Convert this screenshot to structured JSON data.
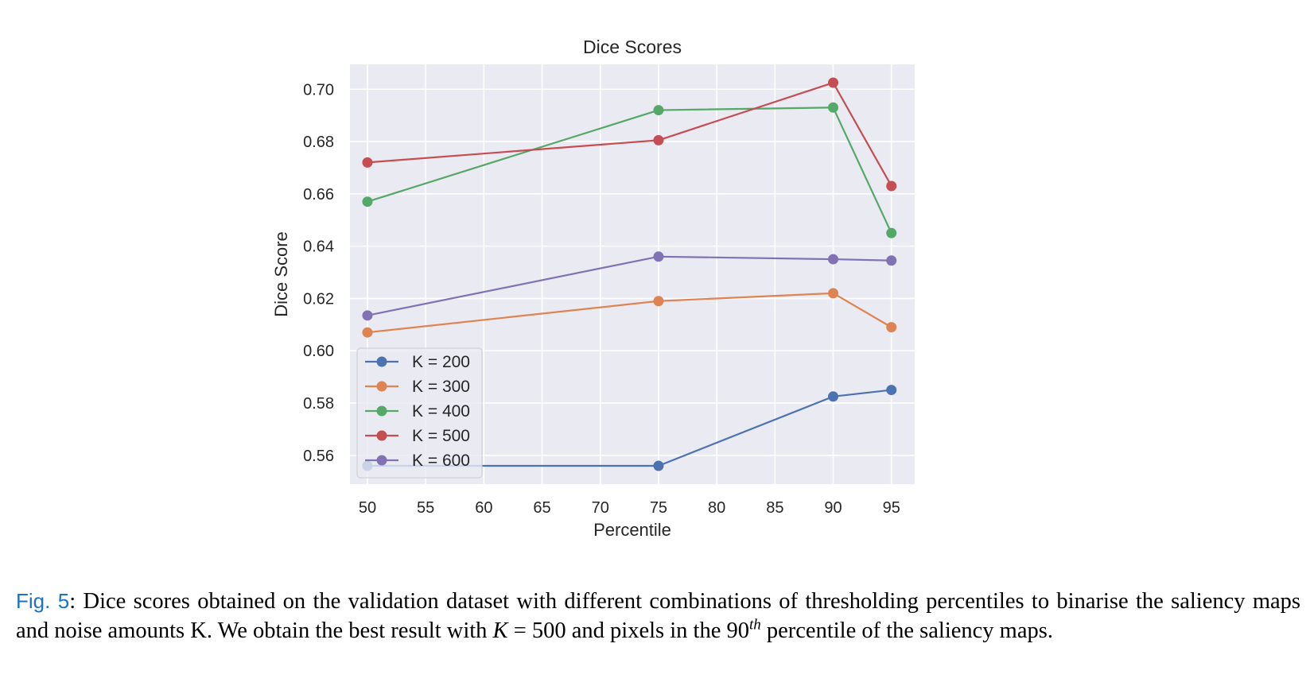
{
  "chart_data": {
    "type": "line",
    "title": "Dice Scores",
    "xlabel": "Percentile",
    "ylabel": "Dice Score",
    "xlim": [
      48.5,
      97
    ],
    "ylim": [
      0.549,
      0.7095
    ],
    "xticks": [
      50,
      55,
      60,
      65,
      70,
      75,
      80,
      85,
      90,
      95
    ],
    "yticks": [
      0.56,
      0.58,
      0.6,
      0.62,
      0.64,
      0.66,
      0.68,
      0.7
    ],
    "ytick_labels": [
      "0.56",
      "0.58",
      "0.60",
      "0.62",
      "0.64",
      "0.66",
      "0.68",
      "0.70"
    ],
    "x": [
      50,
      75,
      90,
      95
    ],
    "grid": true,
    "legend_position": "lower-left",
    "series": [
      {
        "name": "K = 200",
        "color": "#4c72b0",
        "values": [
          0.556,
          0.556,
          0.5825,
          0.585
        ]
      },
      {
        "name": "K = 300",
        "color": "#dd8452",
        "values": [
          0.607,
          0.619,
          0.622,
          0.609
        ]
      },
      {
        "name": "K = 400",
        "color": "#55a868",
        "values": [
          0.657,
          0.692,
          0.693,
          0.645
        ]
      },
      {
        "name": "K = 500",
        "color": "#c44e52",
        "values": [
          0.672,
          0.6805,
          0.7025,
          0.663
        ]
      },
      {
        "name": "K = 600",
        "color": "#8172b3",
        "values": [
          0.6135,
          0.636,
          0.635,
          0.6345
        ]
      }
    ]
  },
  "caption": {
    "fig_ref": "Fig. 5",
    "text_before": ": Dice scores obtained on the validation dataset with different combinations of thresholding percentiles to binarise the saliency maps and noise amounts K. We obtain the best result with ",
    "math_k": "K",
    "math_eq": " = 500",
    "text_mid": " and pixels in the ",
    "math_90": "90",
    "math_th": "th",
    "text_after": " percentile of the saliency maps."
  }
}
